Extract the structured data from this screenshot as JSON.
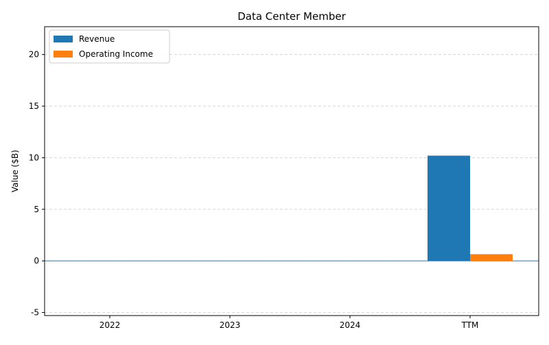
{
  "chart_data": {
    "type": "bar",
    "title": "Data Center Member",
    "xlabel": "",
    "ylabel": "Value ($B)",
    "categories": [
      "2022",
      "2023",
      "2024",
      "TTM"
    ],
    "series": [
      {
        "name": "Revenue",
        "color": "#1f77b4",
        "values": [
          0,
          0,
          0,
          10.2
        ]
      },
      {
        "name": "Operating Income",
        "color": "#ff7f0e",
        "values": [
          0,
          0,
          0,
          0.65
        ]
      }
    ],
    "ylim": [
      -5.3,
      22.7
    ],
    "yticks": [
      -5,
      0,
      5,
      10,
      15,
      20
    ],
    "grid": "y-dashed",
    "legend_position": "top-left",
    "zero_line_color": "#1f77b4"
  }
}
